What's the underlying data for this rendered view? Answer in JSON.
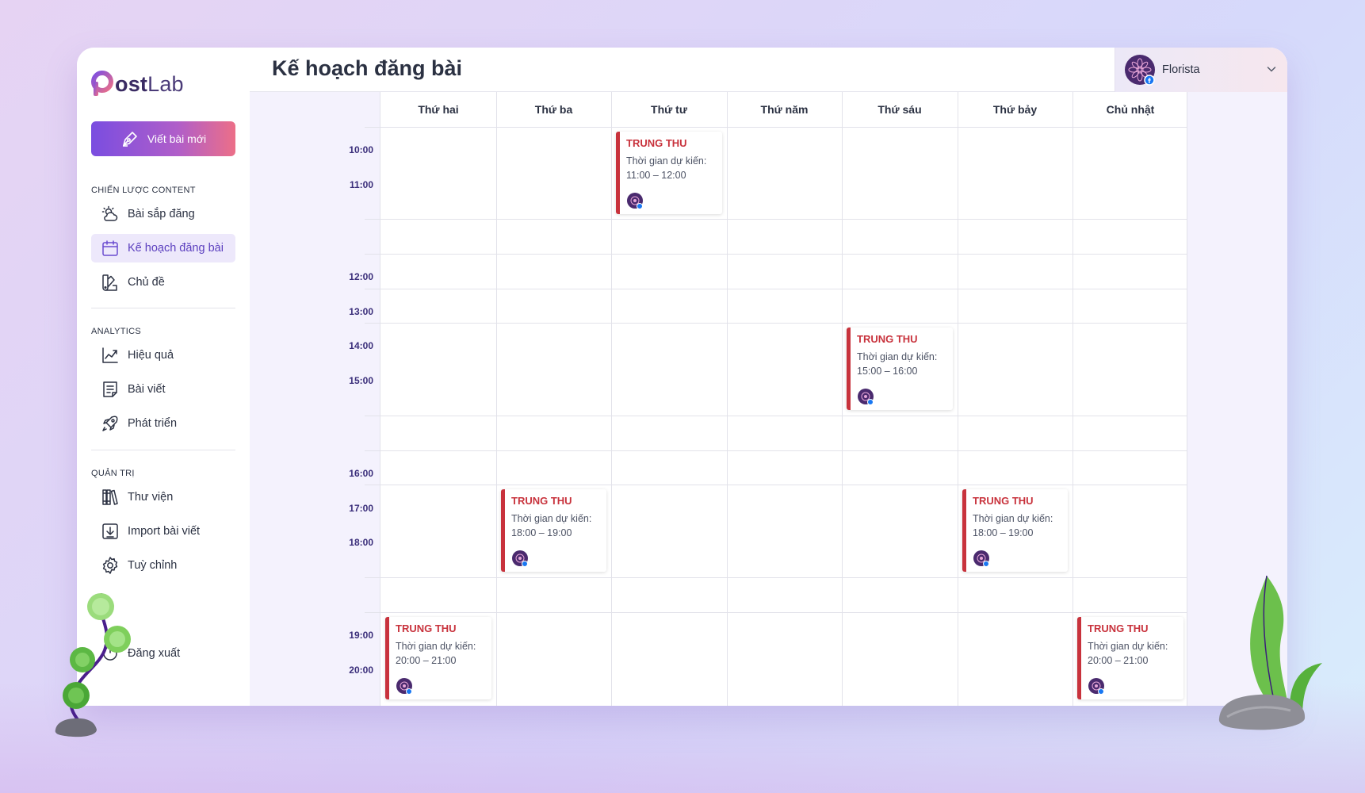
{
  "app": {
    "logo_prefix": "ost",
    "logo_suffix": "Lab",
    "logo_letter": "P"
  },
  "sidebar": {
    "new_post_label": "Viết bài mới",
    "sections": [
      {
        "title": "CHIẾN LƯỢC CONTENT"
      },
      {
        "title": "ANALYTICS"
      },
      {
        "title": "QUẢN TRỊ"
      }
    ],
    "items": [
      {
        "label": "Bài sắp đăng",
        "icon": "cloud-sun-icon"
      },
      {
        "label": "Kế hoạch đăng bài",
        "icon": "calendar-icon",
        "active": true
      },
      {
        "label": "Chủ đề",
        "icon": "swatch-icon"
      },
      {
        "label": "Hiệu quả",
        "icon": "chart-line-icon"
      },
      {
        "label": "Bài viết",
        "icon": "document-icon"
      },
      {
        "label": "Phát triển",
        "icon": "rocket-icon"
      },
      {
        "label": "Thư viện",
        "icon": "library-icon"
      },
      {
        "label": "Import bài viết",
        "icon": "import-icon"
      },
      {
        "label": "Tuỳ chỉnh",
        "icon": "gear-icon"
      }
    ],
    "logout_label": "Đăng xuất"
  },
  "header": {
    "title": "Kế hoạch đăng bài",
    "account_name": "Florista"
  },
  "calendar": {
    "days": [
      "Thứ hai",
      "Thứ ba",
      "Thứ tư",
      "Thứ năm",
      "Thứ sáu",
      "Thứ bảy",
      "Chủ nhật"
    ],
    "times": [
      "10:00",
      "11:00",
      "12:00",
      "13:00",
      "14:00",
      "15:00",
      "16:00",
      "17:00",
      "18:00",
      "19:00",
      "20:00"
    ],
    "events": [
      {
        "title": "TRUNG THU",
        "label": "Thời gian dự kiến:",
        "time": "11:00 – 12:00",
        "day": "Thứ tư"
      },
      {
        "title": "TRUNG THU",
        "label": "Thời gian dự kiến:",
        "time": "15:00 – 16:00",
        "day": "Thứ sáu"
      },
      {
        "title": "TRUNG THU",
        "label": "Thời gian dự kiến:",
        "time": "18:00 – 19:00",
        "day": "Thứ ba"
      },
      {
        "title": "TRUNG THU",
        "label": "Thời gian dự kiến:",
        "time": "18:00 – 19:00",
        "day": "Thứ bảy"
      },
      {
        "title": "TRUNG THU",
        "label": "Thời gian dự kiến:",
        "time": "20:00 – 21:00",
        "day": "Thứ hai"
      },
      {
        "title": "TRUNG THU",
        "label": "Thời gian dự kiến:",
        "time": "20:00 – 21:00",
        "day": "Chủ nhật"
      }
    ]
  },
  "colors": {
    "accent": "#5b3fbf",
    "event_red": "#c8323c",
    "time_label": "#3a2e7a"
  }
}
